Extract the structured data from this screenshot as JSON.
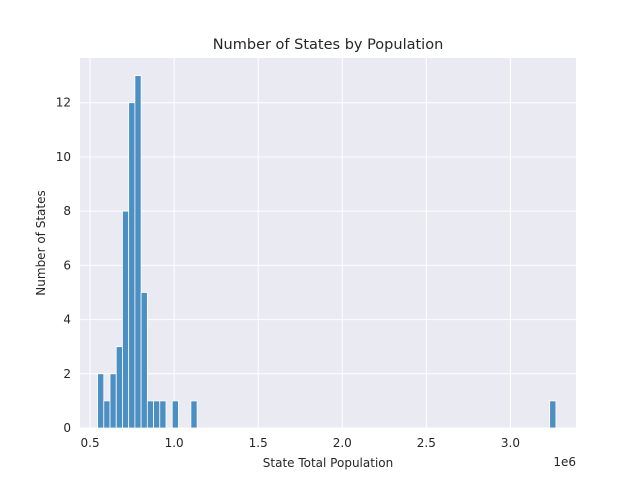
{
  "chart_data": {
    "type": "bar",
    "title": "Number of States by Population",
    "xlabel": "State Total Population",
    "ylabel": "Number of States",
    "x_offset_label": "1e6",
    "x_ticks": [
      0.5,
      1.0,
      1.5,
      2.0,
      2.5,
      3.0
    ],
    "x_tick_labels": [
      "0.5",
      "1.0",
      "1.5",
      "2.0",
      "2.5",
      "3.0"
    ],
    "y_ticks": [
      0,
      2,
      4,
      6,
      8,
      10,
      12
    ],
    "y_tick_labels": [
      "0",
      "2",
      "4",
      "6",
      "8",
      "10",
      "12"
    ],
    "xlim": [
      0.44,
      3.39
    ],
    "ylim": [
      0,
      13.65
    ],
    "grid": true,
    "bar_color": "#4c8fc3",
    "background": "#eaeaf2",
    "bins": [
      {
        "x": 0.563,
        "count": 2
      },
      {
        "x": 0.6,
        "count": 1
      },
      {
        "x": 0.637,
        "count": 2
      },
      {
        "x": 0.674,
        "count": 3
      },
      {
        "x": 0.711,
        "count": 8
      },
      {
        "x": 0.748,
        "count": 12
      },
      {
        "x": 0.785,
        "count": 13
      },
      {
        "x": 0.822,
        "count": 5
      },
      {
        "x": 0.859,
        "count": 1
      },
      {
        "x": 0.896,
        "count": 1
      },
      {
        "x": 0.933,
        "count": 1
      },
      {
        "x": 1.007,
        "count": 1
      },
      {
        "x": 1.118,
        "count": 1
      },
      {
        "x": 3.252,
        "count": 1
      }
    ],
    "bin_width": 0.037
  }
}
